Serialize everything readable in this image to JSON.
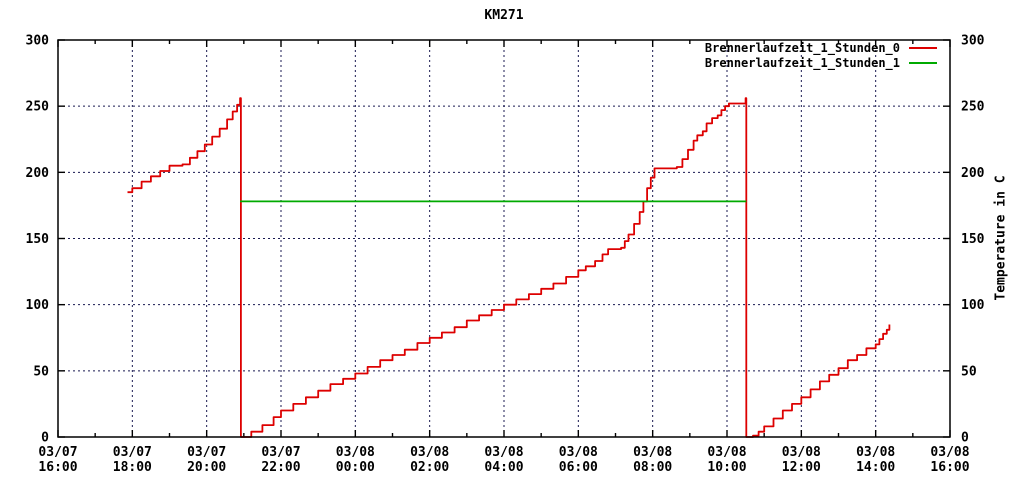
{
  "window": {
    "title": "KM271"
  },
  "chart_data": {
    "type": "line",
    "title": "KM271",
    "ylabel_right": "Temperature in C",
    "legend_position": "top-right-inside",
    "grid": true,
    "ylim": [
      0,
      300
    ],
    "y_ticks": [
      0,
      50,
      100,
      150,
      200,
      250,
      300
    ],
    "x_unit": "hours after 03/07 16:00",
    "x_span_hours": 24,
    "x_major_step_hours": 2,
    "x_minor_step_hours": 1,
    "x_ticks": [
      {
        "date": "03/07",
        "time": "16:00"
      },
      {
        "date": "03/07",
        "time": "18:00"
      },
      {
        "date": "03/07",
        "time": "20:00"
      },
      {
        "date": "03/07",
        "time": "22:00"
      },
      {
        "date": "03/08",
        "time": "00:00"
      },
      {
        "date": "03/08",
        "time": "02:00"
      },
      {
        "date": "03/08",
        "time": "04:00"
      },
      {
        "date": "03/08",
        "time": "06:00"
      },
      {
        "date": "03/08",
        "time": "08:00"
      },
      {
        "date": "03/08",
        "time": "10:00"
      },
      {
        "date": "03/08",
        "time": "12:00"
      },
      {
        "date": "03/08",
        "time": "14:00"
      },
      {
        "date": "03/08",
        "time": "16:00"
      }
    ],
    "series": [
      {
        "name": "Brennerlaufzeit_1_Stunden_0",
        "color": "#dd0000",
        "style": "steps",
        "points": [
          [
            1.87,
            185
          ],
          [
            2.0,
            188
          ],
          [
            2.25,
            193
          ],
          [
            2.5,
            197
          ],
          [
            2.75,
            201
          ],
          [
            3.0,
            205
          ],
          [
            3.35,
            206
          ],
          [
            3.55,
            211
          ],
          [
            3.75,
            216
          ],
          [
            3.95,
            221
          ],
          [
            4.15,
            227
          ],
          [
            4.35,
            233
          ],
          [
            4.55,
            240
          ],
          [
            4.7,
            246
          ],
          [
            4.82,
            251
          ],
          [
            4.9,
            256
          ],
          [
            4.92,
            0
          ],
          [
            5.2,
            4
          ],
          [
            5.5,
            9
          ],
          [
            5.8,
            15
          ],
          [
            6.0,
            20
          ],
          [
            6.33,
            25
          ],
          [
            6.67,
            30
          ],
          [
            7.0,
            35
          ],
          [
            7.33,
            40
          ],
          [
            7.67,
            44
          ],
          [
            8.0,
            48
          ],
          [
            8.33,
            53
          ],
          [
            8.67,
            58
          ],
          [
            9.0,
            62
          ],
          [
            9.33,
            66
          ],
          [
            9.67,
            71
          ],
          [
            10.0,
            75
          ],
          [
            10.33,
            79
          ],
          [
            10.67,
            83
          ],
          [
            11.0,
            88
          ],
          [
            11.33,
            92
          ],
          [
            11.67,
            96
          ],
          [
            12.0,
            100
          ],
          [
            12.33,
            104
          ],
          [
            12.67,
            108
          ],
          [
            13.0,
            112
          ],
          [
            13.33,
            116
          ],
          [
            13.67,
            121
          ],
          [
            14.0,
            126
          ],
          [
            14.2,
            129
          ],
          [
            14.45,
            133
          ],
          [
            14.65,
            138
          ],
          [
            14.8,
            142
          ],
          [
            15.15,
            143
          ],
          [
            15.25,
            148
          ],
          [
            15.35,
            153
          ],
          [
            15.5,
            161
          ],
          [
            15.65,
            170
          ],
          [
            15.75,
            178
          ],
          [
            15.85,
            188
          ],
          [
            15.95,
            196
          ],
          [
            16.05,
            203
          ],
          [
            16.65,
            204
          ],
          [
            16.8,
            210
          ],
          [
            16.95,
            217
          ],
          [
            17.1,
            224
          ],
          [
            17.2,
            228
          ],
          [
            17.35,
            231
          ],
          [
            17.45,
            237
          ],
          [
            17.6,
            241
          ],
          [
            17.75,
            243
          ],
          [
            17.85,
            247
          ],
          [
            17.95,
            250
          ],
          [
            18.05,
            252
          ],
          [
            18.45,
            252
          ],
          [
            18.5,
            256
          ],
          [
            18.52,
            0
          ],
          [
            18.7,
            1
          ],
          [
            18.85,
            4
          ],
          [
            19.0,
            8
          ],
          [
            19.25,
            14
          ],
          [
            19.5,
            20
          ],
          [
            19.75,
            25
          ],
          [
            20.0,
            30
          ],
          [
            20.25,
            36
          ],
          [
            20.5,
            42
          ],
          [
            20.75,
            47
          ],
          [
            21.0,
            52
          ],
          [
            21.25,
            58
          ],
          [
            21.5,
            62
          ],
          [
            21.75,
            67
          ],
          [
            22.0,
            70
          ],
          [
            22.1,
            74
          ],
          [
            22.2,
            78
          ],
          [
            22.3,
            81
          ],
          [
            22.37,
            85
          ]
        ]
      },
      {
        "name": "Brennerlaufzeit_1_Stunden_1",
        "color": "#00aa00",
        "style": "steps",
        "points": [
          [
            4.9,
            178
          ],
          [
            18.52,
            178
          ]
        ]
      }
    ]
  }
}
